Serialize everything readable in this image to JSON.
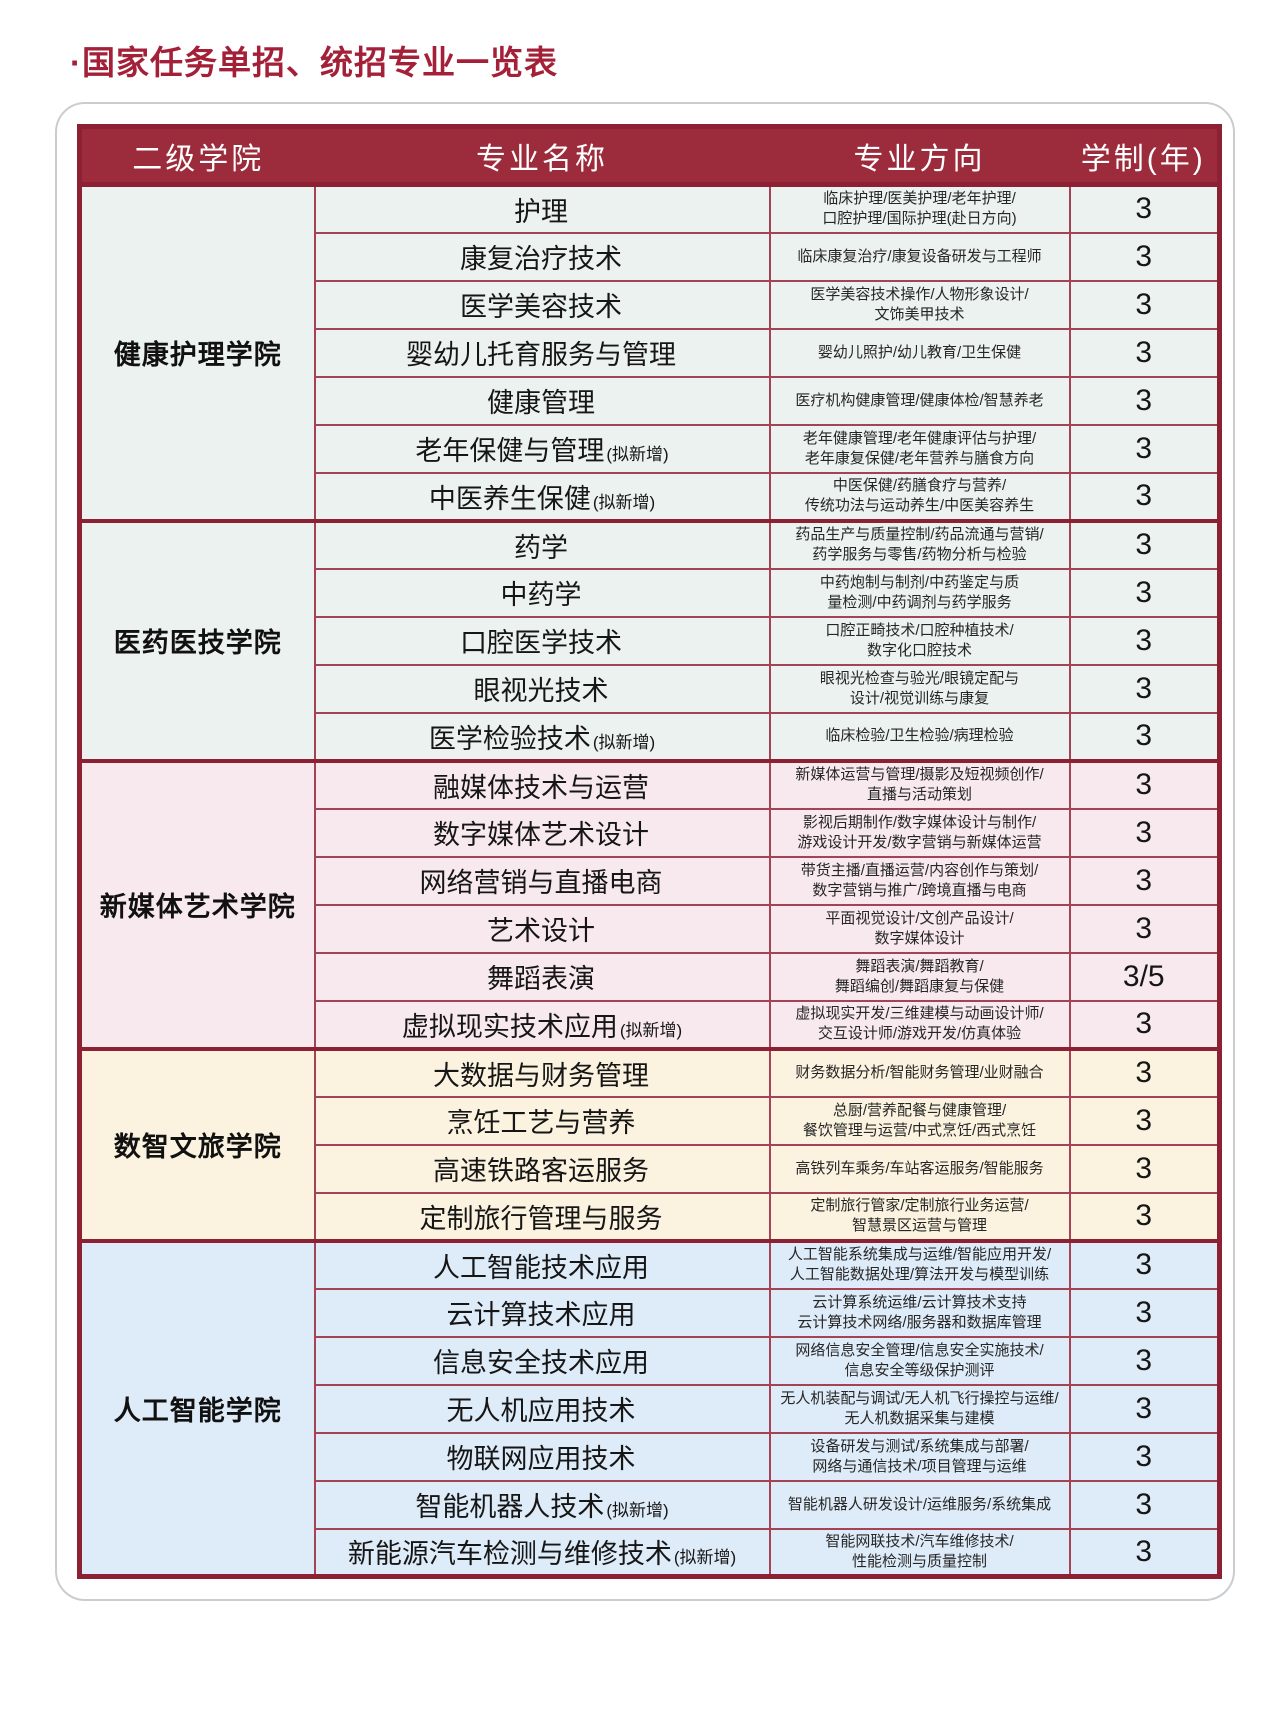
{
  "title": "·国家任务单招、统招专业一览表",
  "colors": {
    "title": "#A32038",
    "header_bg": "#9C2B3C",
    "border_thick": "#8C2133",
    "border_thin": "#A44356",
    "section_bgs": [
      "#ECF2F0",
      "#ECF2F0",
      "#F8E9EE",
      "#FBF3DF",
      "#DEEBF8"
    ]
  },
  "table": {
    "headers": [
      "二级学院",
      "专业名称",
      "专业方向",
      "学制(年)"
    ],
    "sections": [
      {
        "college": "健康护理学院",
        "bg": "#ECF2F0",
        "rows": [
          {
            "name": "护理",
            "note": "",
            "direction": "临床护理/医美护理/老年护理/\n口腔护理/国际护理(赴日方向)",
            "years": "3"
          },
          {
            "name": "康复治疗技术",
            "note": "",
            "direction": "临床康复治疗/康复设备研发与工程师",
            "years": "3"
          },
          {
            "name": "医学美容技术",
            "note": "",
            "direction": "医学美容技术操作/人物形象设计/\n文饰美甲技术",
            "years": "3"
          },
          {
            "name": "婴幼儿托育服务与管理",
            "note": "",
            "direction": "婴幼儿照护/幼儿教育/卫生保健",
            "years": "3"
          },
          {
            "name": "健康管理",
            "note": "",
            "direction": "医疗机构健康管理/健康体检/智慧养老",
            "years": "3"
          },
          {
            "name": "老年保健与管理",
            "note": "(拟新增)",
            "direction": "老年健康管理/老年健康评估与护理/\n老年康复保健/老年营养与膳食方向",
            "years": "3"
          },
          {
            "name": "中医养生保健",
            "note": "(拟新增)",
            "direction": "中医保健/药膳食疗与营养/\n传统功法与运动养生/中医美容养生",
            "years": "3"
          }
        ]
      },
      {
        "college": "医药医技学院",
        "bg": "#ECF2F0",
        "rows": [
          {
            "name": "药学",
            "note": "",
            "direction": "药品生产与质量控制/药品流通与营销/\n药学服务与零售/药物分析与检验",
            "years": "3"
          },
          {
            "name": "中药学",
            "note": "",
            "direction": "中药炮制与制剂/中药鉴定与质\n量检测/中药调剂与药学服务",
            "years": "3"
          },
          {
            "name": "口腔医学技术",
            "note": "",
            "direction": "口腔正畸技术/口腔种植技术/\n数字化口腔技术",
            "years": "3"
          },
          {
            "name": "眼视光技术",
            "note": "",
            "direction": "眼视光检查与验光/眼镜定配与\n设计/视觉训练与康复",
            "years": "3"
          },
          {
            "name": "医学检验技术",
            "note": "(拟新增)",
            "direction": "临床检验/卫生检验/病理检验",
            "years": "3"
          }
        ]
      },
      {
        "college": "新媒体艺术学院",
        "bg": "#F8E9EE",
        "rows": [
          {
            "name": "融媒体技术与运营",
            "note": "",
            "direction": "新媒体运营与管理/摄影及短视频创作/\n直播与活动策划",
            "years": "3"
          },
          {
            "name": "数字媒体艺术设计",
            "note": "",
            "direction": "影视后期制作/数字媒体设计与制作/\n游戏设计开发/数字营销与新媒体运营",
            "years": "3"
          },
          {
            "name": "网络营销与直播电商",
            "note": "",
            "direction": "带货主播/直播运营/内容创作与策划/\n数字营销与推广/跨境直播与电商",
            "years": "3"
          },
          {
            "name": "艺术设计",
            "note": "",
            "direction": "平面视觉设计/文创产品设计/\n数字媒体设计",
            "years": "3"
          },
          {
            "name": "舞蹈表演",
            "note": "",
            "direction": "舞蹈表演/舞蹈教育/\n舞蹈编创/舞蹈康复与保健",
            "years": "3/5"
          },
          {
            "name": "虚拟现实技术应用",
            "note": "(拟新增)",
            "direction": "虚拟现实开发/三维建模与动画设计师/\n交互设计师/游戏开发/仿真体验",
            "years": "3"
          }
        ]
      },
      {
        "college": "数智文旅学院",
        "bg": "#FBF3DF",
        "rows": [
          {
            "name": "大数据与财务管理",
            "note": "",
            "direction": "财务数据分析/智能财务管理/业财融合",
            "years": "3"
          },
          {
            "name": "烹饪工艺与营养",
            "note": "",
            "direction": "总厨/营养配餐与健康管理/\n餐饮管理与运营/中式烹饪/西式烹饪",
            "years": "3"
          },
          {
            "name": "高速铁路客运服务",
            "note": "",
            "direction": "高铁列车乘务/车站客运服务/智能服务",
            "years": "3"
          },
          {
            "name": "定制旅行管理与服务",
            "note": "",
            "direction": "定制旅行管家/定制旅行业务运营/\n智慧景区运营与管理",
            "years": "3"
          }
        ]
      },
      {
        "college": "人工智能学院",
        "bg": "#DEEBF8",
        "rows": [
          {
            "name": "人工智能技术应用",
            "note": "",
            "direction": "人工智能系统集成与运维/智能应用开发/\n人工智能数据处理/算法开发与模型训练",
            "years": "3"
          },
          {
            "name": "云计算技术应用",
            "note": "",
            "direction": "云计算系统运维/云计算技术支持\n云计算技术网络/服务器和数据库管理",
            "years": "3"
          },
          {
            "name": "信息安全技术应用",
            "note": "",
            "direction": "网络信息安全管理/信息安全实施技术/\n信息安全等级保护测评",
            "years": "3"
          },
          {
            "name": "无人机应用技术",
            "note": "",
            "direction": "无人机装配与调试/无人机飞行操控与运维/\n无人机数据采集与建模",
            "years": "3"
          },
          {
            "name": "物联网应用技术",
            "note": "",
            "direction": "设备研发与测试/系统集成与部署/\n网络与通信技术/项目管理与运维",
            "years": "3"
          },
          {
            "name": "智能机器人技术",
            "note": "(拟新增)",
            "direction": "智能机器人研发设计/运维服务/系统集成",
            "years": "3"
          },
          {
            "name": "新能源汽车检测与维修技术",
            "note": "(拟新增)",
            "direction": "智能网联技术/汽车维修技术/\n性能检测与质量控制",
            "years": "3"
          }
        ]
      }
    ]
  }
}
